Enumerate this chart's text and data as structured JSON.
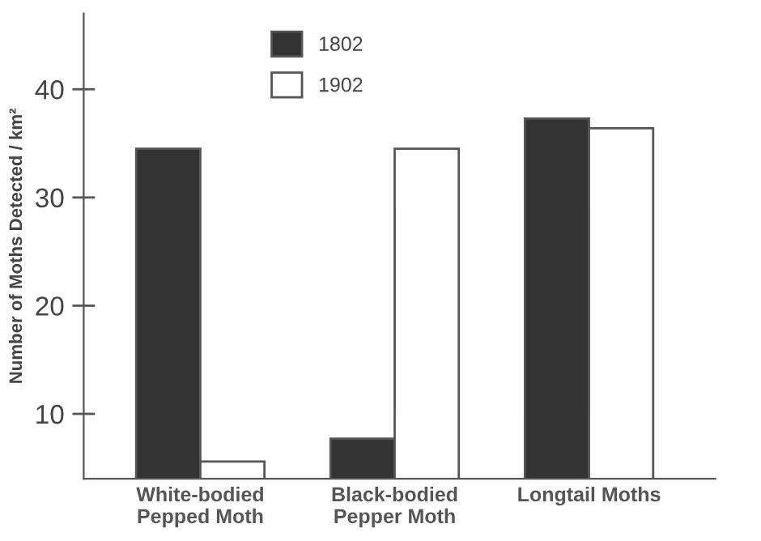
{
  "chart_data": {
    "type": "bar",
    "ylabel": "Number of Moths Detected / km²",
    "categories": [
      "White-bodied\nPepped Moth",
      "Black-bodied\nPepper Moth",
      "Longtail Moths"
    ],
    "series": [
      {
        "name": "1802",
        "color": "#333333",
        "values": [
          34.5,
          7.7,
          37.3
        ]
      },
      {
        "name": "1902",
        "color": "#ffffff",
        "values": [
          5.6,
          34.5,
          36.4
        ]
      }
    ],
    "ylim": [
      4,
      47
    ],
    "yticks": [
      10,
      20,
      30,
      40
    ],
    "grid": false,
    "legend": "top"
  }
}
